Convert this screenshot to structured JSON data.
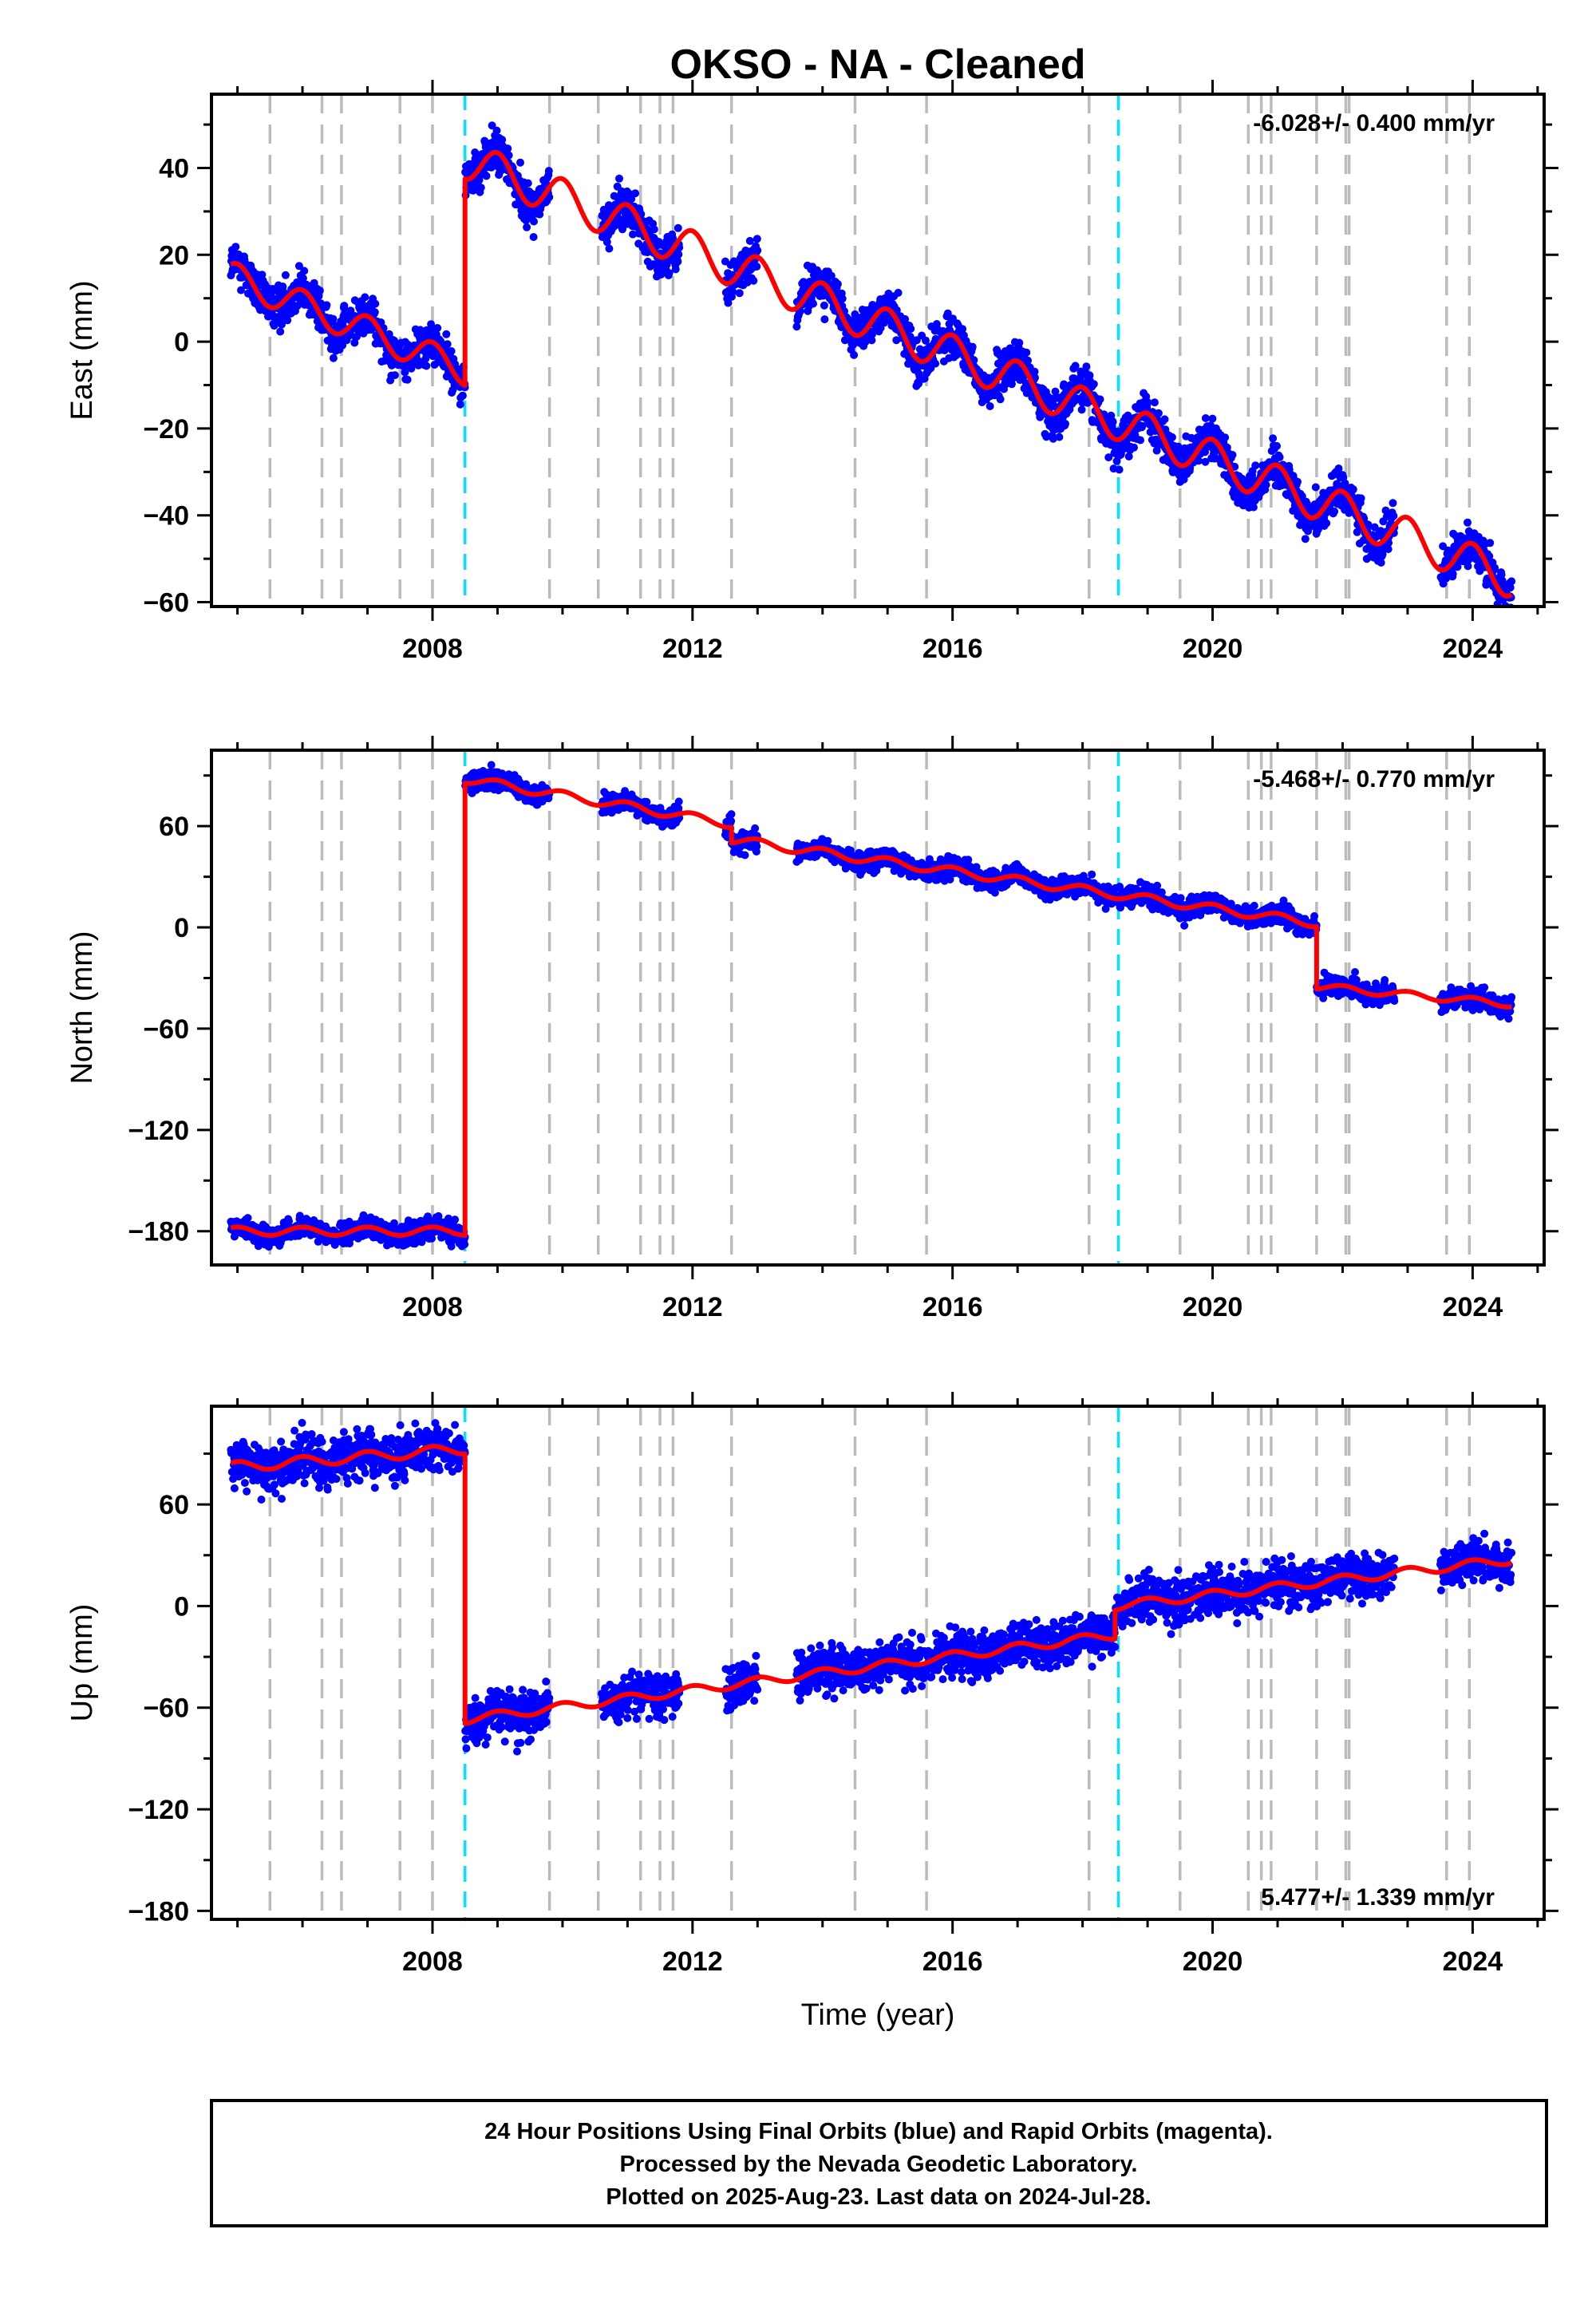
{
  "title": "OKSO  - NA - Cleaned",
  "colors": {
    "data": "#0000ff",
    "model": "#ff0000",
    "event_line": "#bbbbbb",
    "equipment_line": "#00e5ff",
    "frame": "#000000"
  },
  "chart_data": [
    {
      "type": "scatter",
      "ylabel": "East (mm)",
      "xlabel": "",
      "rate_label": "-6.028+/- 0.400 mm/yr",
      "rate_position": "top-right",
      "xlim": [
        2004.6,
        2025.1
      ],
      "ylim": [
        -61,
        57
      ],
      "x_ticks": [
        2008,
        2012,
        2016,
        2020,
        2024
      ],
      "x_tick_labels": [
        "2008",
        "2012",
        "2016",
        "2020",
        "2024"
      ],
      "y_ticks": [
        -60,
        -40,
        -20,
        0,
        20,
        40
      ],
      "y_tick_labels": [
        "−60",
        "−40",
        "−20",
        "0",
        "20",
        "40"
      ],
      "model": {
        "name": "model",
        "segments": [
          {
            "start": 2004.9,
            "end": 2008.5,
            "offset": 15.0,
            "rate": -6.0,
            "seasonal_amp": 3.5
          },
          {
            "start": 2008.5,
            "end": 2024.6,
            "offset": 42.0,
            "rate": -6.0,
            "seasonal_amp": 4.5
          }
        ]
      },
      "observed": {
        "noise": 2.4,
        "gaps": [
          [
            2009.8,
            2010.6
          ],
          [
            2011.8,
            2012.5
          ],
          [
            2013.0,
            2013.6
          ],
          [
            2022.8,
            2023.5
          ]
        ]
      }
    },
    {
      "type": "scatter",
      "ylabel": "North (mm)",
      "xlabel": "",
      "rate_label": "-5.468+/- 0.770 mm/yr",
      "rate_position": "top-right",
      "xlim": [
        2004.6,
        2025.1
      ],
      "ylim": [
        -200,
        105
      ],
      "x_ticks": [
        2008,
        2012,
        2016,
        2020,
        2024
      ],
      "x_tick_labels": [
        "2008",
        "2012",
        "2016",
        "2020",
        "2024"
      ],
      "y_ticks": [
        -180,
        -120,
        -60,
        0,
        60
      ],
      "y_tick_labels": [
        "−180",
        "−120",
        "−60",
        "0",
        "60"
      ],
      "model": {
        "name": "model",
        "segments": [
          {
            "start": 2004.9,
            "end": 2008.5,
            "offset": -180.0,
            "rate": 0.0,
            "seasonal_amp": 2.5
          },
          {
            "start": 2008.5,
            "end": 2012.6,
            "offset": 88.0,
            "rate": -6.5,
            "seasonal_amp": 2.5
          },
          {
            "start": 2012.6,
            "end": 2021.6,
            "offset": 52.0,
            "rate": -5.5,
            "seasonal_amp": 2.5
          },
          {
            "start": 2021.6,
            "end": 2024.6,
            "offset": -35.0,
            "rate": -3.5,
            "seasonal_amp": 2.0
          }
        ]
      },
      "observed": {
        "noise": 3.0,
        "gaps": [
          [
            2009.8,
            2010.6
          ],
          [
            2011.8,
            2012.5
          ],
          [
            2013.0,
            2013.6
          ],
          [
            2022.8,
            2023.5
          ]
        ]
      }
    },
    {
      "type": "scatter",
      "ylabel": "Up (mm)",
      "xlabel": "Time (year)",
      "rate_label": "5.477+/- 1.339 mm/yr",
      "rate_position": "bottom-right",
      "xlim": [
        2004.6,
        2025.1
      ],
      "ylim": [
        -185,
        118
      ],
      "x_ticks": [
        2008,
        2012,
        2016,
        2020,
        2024
      ],
      "x_tick_labels": [
        "2008",
        "2012",
        "2016",
        "2020",
        "2024"
      ],
      "y_ticks": [
        -180,
        -120,
        -60,
        0,
        60
      ],
      "y_tick_labels": [
        "−180",
        "−120",
        "−60",
        "0",
        "60"
      ],
      "model": {
        "name": "model",
        "segments": [
          {
            "start": 2004.9,
            "end": 2008.5,
            "offset": 82.0,
            "rate": 3.0,
            "seasonal_amp": 3.0
          },
          {
            "start": 2008.5,
            "end": 2018.5,
            "offset": -67.0,
            "rate": 5.0,
            "seasonal_amp": 2.5
          },
          {
            "start": 2018.5,
            "end": 2024.6,
            "offset": 0.0,
            "rate": 4.5,
            "seasonal_amp": 2.5
          }
        ]
      },
      "observed": {
        "noise": 6.5,
        "gaps": [
          [
            2009.8,
            2010.6
          ],
          [
            2011.8,
            2012.5
          ],
          [
            2013.0,
            2013.6
          ],
          [
            2022.8,
            2023.5
          ]
        ]
      }
    }
  ],
  "event_lines": [
    2005.5,
    2006.3,
    2006.6,
    2007.5,
    2008.0,
    2009.8,
    2010.55,
    2011.2,
    2011.5,
    2011.7,
    2012.6,
    2014.5,
    2015.6,
    2018.1,
    2019.5,
    2020.55,
    2020.75,
    2020.9,
    2021.6,
    2022.05,
    2022.1,
    2023.6,
    2023.95
  ],
  "equipment_lines": [
    2008.5,
    2018.55
  ],
  "footer": {
    "line1": "24 Hour Positions Using Final Orbits (blue) and Rapid Orbits (magenta).",
    "line2": "Processed by the Nevada Geodetic Laboratory.",
    "line3": "Plotted on 2025-Aug-23. Last data on 2024-Jul-28."
  }
}
